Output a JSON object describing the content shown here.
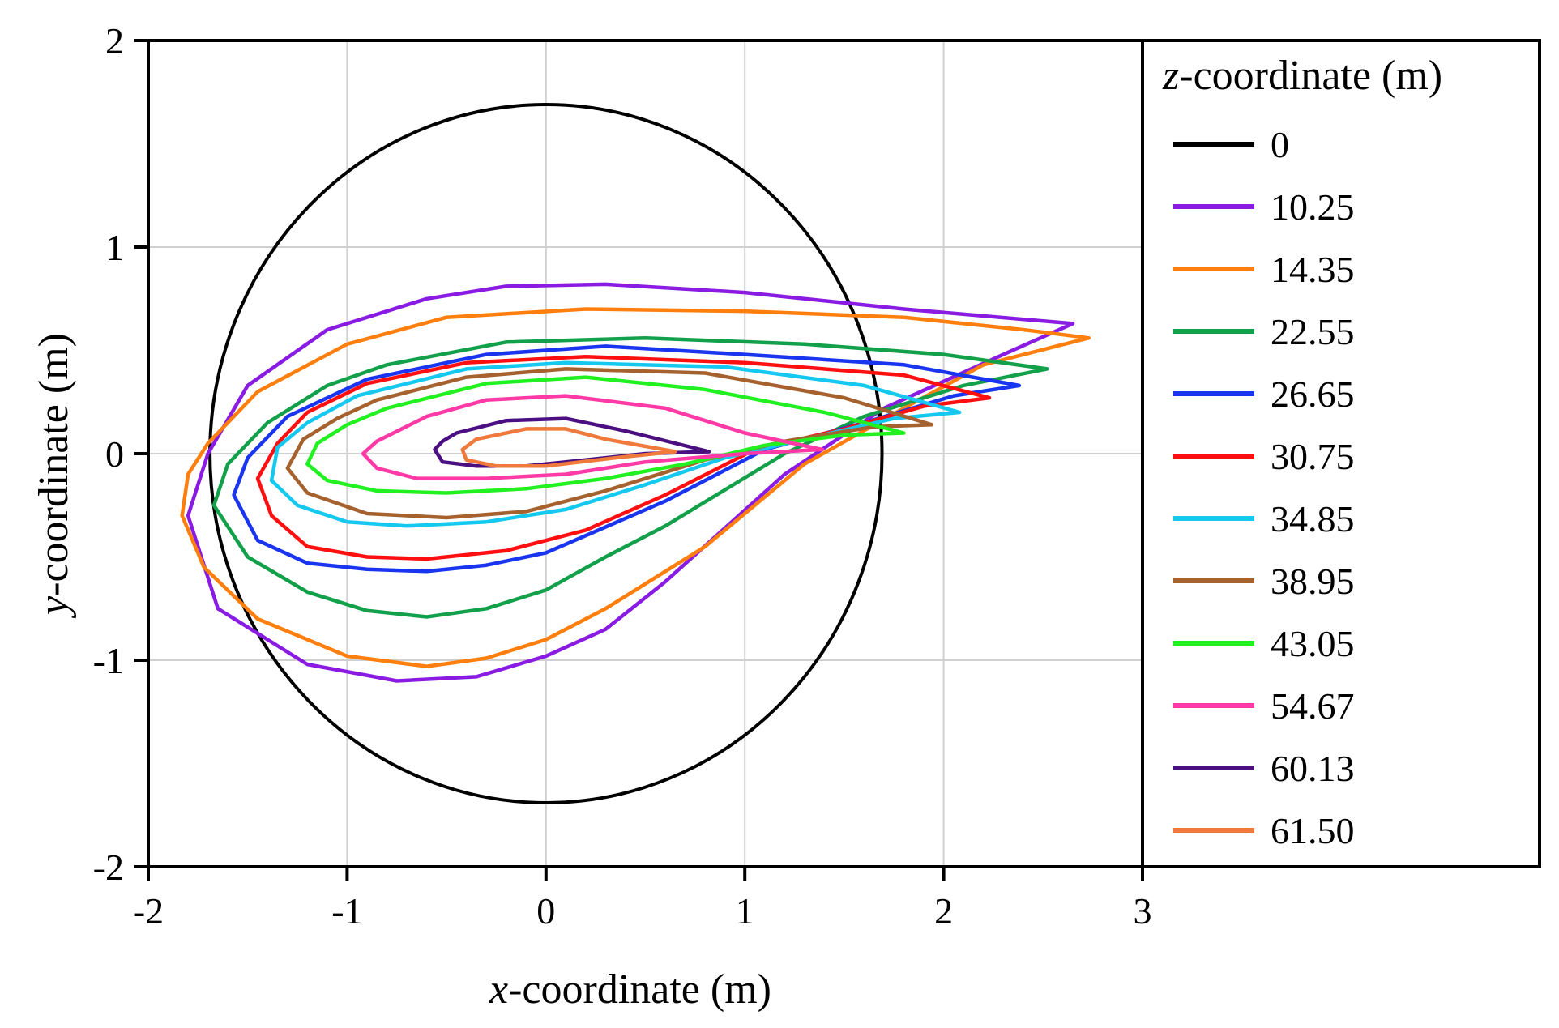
{
  "chart_data": {
    "type": "line",
    "xlabel": {
      "italic": "x",
      "rest": "-coordinate (m)"
    },
    "ylabel": {
      "italic": "y",
      "rest": "-coordinate (m)"
    },
    "xlim": [
      -2,
      3
    ],
    "ylim": [
      -2,
      2
    ],
    "x_ticks": [
      -2,
      -1,
      0,
      1,
      2,
      3
    ],
    "y_ticks": [
      -2,
      -1,
      0,
      1,
      2
    ],
    "x_tick_labels": [
      "-2",
      "-1",
      "0",
      "1",
      "2",
      "3"
    ],
    "y_tick_labels": [
      "-2",
      "-1",
      "0",
      "1",
      "2"
    ],
    "grid": true,
    "legend": {
      "title_italic": "z",
      "title_rest": "-coordinate (m)",
      "placement": "right"
    },
    "series": [
      {
        "name": "0",
        "color": "#000000",
        "kind": "circle",
        "cx": 0,
        "cy": 0,
        "r": 1.69
      },
      {
        "name": "10.25",
        "color": "#8a1be2",
        "points": [
          [
            -0.2,
            0.81
          ],
          [
            0.3,
            0.82
          ],
          [
            1,
            0.78
          ],
          [
            1.8,
            0.7
          ],
          [
            2.65,
            0.63
          ],
          [
            2.3,
            0.48
          ],
          [
            1.7,
            0.22
          ],
          [
            1.2,
            -0.1
          ],
          [
            0.6,
            -0.62
          ],
          [
            0.3,
            -0.85
          ],
          [
            0,
            -0.98
          ],
          [
            -0.35,
            -1.08
          ],
          [
            -0.75,
            -1.1
          ],
          [
            -1.2,
            -1.02
          ],
          [
            -1.65,
            -0.75
          ],
          [
            -1.8,
            -0.3
          ],
          [
            -1.7,
            0
          ],
          [
            -1.5,
            0.33
          ],
          [
            -1.1,
            0.6
          ],
          [
            -0.6,
            0.75
          ],
          [
            -0.2,
            0.81
          ]
        ]
      },
      {
        "name": "14.35",
        "color": "#ff7f0e",
        "points": [
          [
            -0.5,
            0.66
          ],
          [
            0.2,
            0.7
          ],
          [
            1,
            0.69
          ],
          [
            1.8,
            0.66
          ],
          [
            2.4,
            0.6
          ],
          [
            2.73,
            0.56
          ],
          [
            2.2,
            0.43
          ],
          [
            1.8,
            0.22
          ],
          [
            1.3,
            -0.05
          ],
          [
            0.8,
            -0.45
          ],
          [
            0.3,
            -0.75
          ],
          [
            0,
            -0.9
          ],
          [
            -0.3,
            -0.99
          ],
          [
            -0.6,
            -1.03
          ],
          [
            -1,
            -0.98
          ],
          [
            -1.45,
            -0.8
          ],
          [
            -1.72,
            -0.55
          ],
          [
            -1.83,
            -0.3
          ],
          [
            -1.8,
            -0.1
          ],
          [
            -1.7,
            0.05
          ],
          [
            -1.45,
            0.3
          ],
          [
            -1,
            0.53
          ],
          [
            -0.5,
            0.66
          ]
        ]
      },
      {
        "name": "22.55",
        "color": "#13a04a",
        "points": [
          [
            -0.8,
            0.43
          ],
          [
            -0.2,
            0.54
          ],
          [
            0.5,
            0.56
          ],
          [
            1.3,
            0.53
          ],
          [
            2,
            0.48
          ],
          [
            2.52,
            0.41
          ],
          [
            2.1,
            0.33
          ],
          [
            1.6,
            0.18
          ],
          [
            1.2,
            0
          ],
          [
            0.6,
            -0.35
          ],
          [
            0.3,
            -0.5
          ],
          [
            0,
            -0.66
          ],
          [
            -0.3,
            -0.75
          ],
          [
            -0.6,
            -0.79
          ],
          [
            -0.9,
            -0.76
          ],
          [
            -1.2,
            -0.67
          ],
          [
            -1.5,
            -0.5
          ],
          [
            -1.67,
            -0.25
          ],
          [
            -1.6,
            -0.05
          ],
          [
            -1.4,
            0.15
          ],
          [
            -1.1,
            0.33
          ],
          [
            -0.8,
            0.43
          ]
        ]
      },
      {
        "name": "26.65",
        "color": "#1a35f0",
        "points": [
          [
            -0.9,
            0.36
          ],
          [
            -0.3,
            0.48
          ],
          [
            0.3,
            0.52
          ],
          [
            1,
            0.48
          ],
          [
            1.8,
            0.43
          ],
          [
            2.38,
            0.33
          ],
          [
            2.05,
            0.28
          ],
          [
            1.6,
            0.15
          ],
          [
            1.1,
            0.02
          ],
          [
            0.6,
            -0.23
          ],
          [
            0,
            -0.48
          ],
          [
            -0.3,
            -0.54
          ],
          [
            -0.6,
            -0.57
          ],
          [
            -0.9,
            -0.56
          ],
          [
            -1.2,
            -0.53
          ],
          [
            -1.45,
            -0.42
          ],
          [
            -1.57,
            -0.2
          ],
          [
            -1.5,
            -0.02
          ],
          [
            -1.3,
            0.18
          ],
          [
            -0.9,
            0.36
          ]
        ]
      },
      {
        "name": "30.75",
        "color": "#ff0f0f",
        "points": [
          [
            -0.9,
            0.34
          ],
          [
            -0.4,
            0.44
          ],
          [
            0.2,
            0.47
          ],
          [
            1,
            0.44
          ],
          [
            1.8,
            0.38
          ],
          [
            2.23,
            0.27
          ],
          [
            1.9,
            0.23
          ],
          [
            1.5,
            0.12
          ],
          [
            1.05,
            0.02
          ],
          [
            0.6,
            -0.2
          ],
          [
            0.2,
            -0.37
          ],
          [
            -0.2,
            -0.47
          ],
          [
            -0.6,
            -0.51
          ],
          [
            -0.9,
            -0.5
          ],
          [
            -1.2,
            -0.45
          ],
          [
            -1.38,
            -0.3
          ],
          [
            -1.45,
            -0.12
          ],
          [
            -1.35,
            0.05
          ],
          [
            -1.2,
            0.2
          ],
          [
            -0.9,
            0.34
          ]
        ]
      },
      {
        "name": "34.85",
        "color": "#14c8f0",
        "points": [
          [
            -0.95,
            0.28
          ],
          [
            -0.4,
            0.41
          ],
          [
            0.1,
            0.44
          ],
          [
            0.9,
            0.42
          ],
          [
            1.6,
            0.33
          ],
          [
            2.08,
            0.2
          ],
          [
            1.75,
            0.17
          ],
          [
            1.3,
            0.07
          ],
          [
            0.9,
            -0.02
          ],
          [
            0.5,
            -0.15
          ],
          [
            0.1,
            -0.27
          ],
          [
            -0.3,
            -0.33
          ],
          [
            -0.7,
            -0.35
          ],
          [
            -1,
            -0.33
          ],
          [
            -1.25,
            -0.25
          ],
          [
            -1.38,
            -0.13
          ],
          [
            -1.35,
            0.03
          ],
          [
            -1.2,
            0.15
          ],
          [
            -0.95,
            0.28
          ]
        ]
      },
      {
        "name": "38.95",
        "color": "#a6622e",
        "points": [
          [
            -0.85,
            0.26
          ],
          [
            -0.4,
            0.37
          ],
          [
            0.1,
            0.41
          ],
          [
            0.8,
            0.39
          ],
          [
            1.5,
            0.27
          ],
          [
            1.94,
            0.14
          ],
          [
            1.65,
            0.13
          ],
          [
            1.2,
            0.06
          ],
          [
            0.8,
            -0.03
          ],
          [
            0.3,
            -0.18
          ],
          [
            -0.1,
            -0.28
          ],
          [
            -0.5,
            -0.31
          ],
          [
            -0.9,
            -0.29
          ],
          [
            -1.2,
            -0.19
          ],
          [
            -1.3,
            -0.07
          ],
          [
            -1.22,
            0.07
          ],
          [
            -1.05,
            0.17
          ],
          [
            -0.85,
            0.26
          ]
        ]
      },
      {
        "name": "43.05",
        "color": "#21f021",
        "points": [
          [
            -0.8,
            0.22
          ],
          [
            -0.3,
            0.34
          ],
          [
            0.2,
            0.37
          ],
          [
            0.8,
            0.31
          ],
          [
            1.4,
            0.2
          ],
          [
            1.8,
            0.1
          ],
          [
            1.5,
            0.09
          ],
          [
            1.1,
            0.04
          ],
          [
            0.7,
            -0.05
          ],
          [
            0.3,
            -0.12
          ],
          [
            -0.1,
            -0.17
          ],
          [
            -0.5,
            -0.19
          ],
          [
            -0.85,
            -0.18
          ],
          [
            -1.1,
            -0.13
          ],
          [
            -1.2,
            -0.05
          ],
          [
            -1.15,
            0.05
          ],
          [
            -1,
            0.14
          ],
          [
            -0.8,
            0.22
          ]
        ]
      },
      {
        "name": "54.67",
        "color": "#ff3aa6",
        "points": [
          [
            -0.6,
            0.18
          ],
          [
            -0.3,
            0.26
          ],
          [
            0.1,
            0.28
          ],
          [
            0.6,
            0.22
          ],
          [
            1,
            0.1
          ],
          [
            1.39,
            0.02
          ],
          [
            1,
            0
          ],
          [
            0.5,
            -0.04
          ],
          [
            0.1,
            -0.1
          ],
          [
            -0.3,
            -0.12
          ],
          [
            -0.65,
            -0.12
          ],
          [
            -0.85,
            -0.07
          ],
          [
            -0.92,
            0
          ],
          [
            -0.85,
            0.06
          ],
          [
            -0.6,
            0.18
          ]
        ]
      },
      {
        "name": "60.13",
        "color": "#4b0f82",
        "points": [
          [
            -0.45,
            0.1
          ],
          [
            -0.2,
            0.16
          ],
          [
            0.1,
            0.17
          ],
          [
            0.4,
            0.11
          ],
          [
            0.82,
            0.01
          ],
          [
            0.5,
            0
          ],
          [
            0.2,
            -0.03
          ],
          [
            -0.1,
            -0.06
          ],
          [
            -0.35,
            -0.06
          ],
          [
            -0.52,
            -0.04
          ],
          [
            -0.56,
            0.02
          ],
          [
            -0.52,
            0.06
          ],
          [
            -0.45,
            0.1
          ]
        ]
      },
      {
        "name": "61.50",
        "color": "#f07a3c",
        "points": [
          [
            -0.35,
            0.07
          ],
          [
            -0.1,
            0.12
          ],
          [
            0.1,
            0.12
          ],
          [
            0.3,
            0.07
          ],
          [
            0.65,
            0.01
          ],
          [
            0.35,
            -0.02
          ],
          [
            0,
            -0.06
          ],
          [
            -0.25,
            -0.06
          ],
          [
            -0.4,
            -0.03
          ],
          [
            -0.42,
            0.02
          ],
          [
            -0.35,
            0.07
          ]
        ]
      }
    ]
  }
}
